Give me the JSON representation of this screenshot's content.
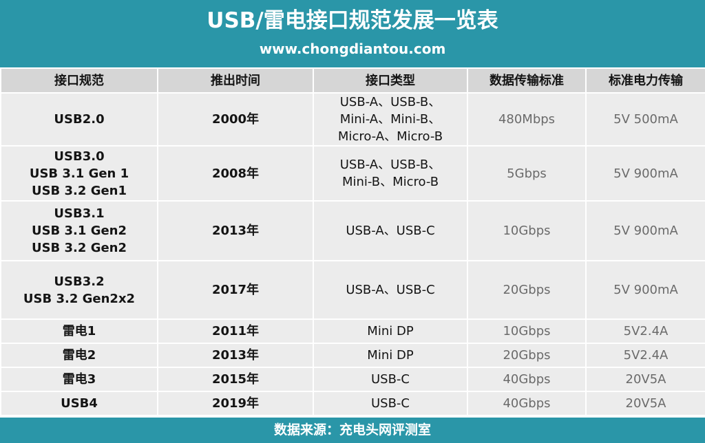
{
  "header": {
    "title": "USB/雷电接口规范发展一览表",
    "site": "www.chongdiantou.com"
  },
  "table": {
    "columns": [
      "接口规范",
      "推出时间",
      "接口类型",
      "数据传输标准",
      "标准电力传输"
    ],
    "rows": [
      {
        "spec": [
          "USB2.0"
        ],
        "year": "2000年",
        "types": [
          "USB-A、USB-B、",
          "Mini-A、Mini-B、",
          "Micro-A、Micro-B"
        ],
        "data_rate": "480Mbps",
        "power": "5V 500mA"
      },
      {
        "spec": [
          "USB3.0",
          "USB 3.1 Gen 1",
          "USB 3.2 Gen1"
        ],
        "year": "2008年",
        "types": [
          "USB-A、USB-B、",
          "Mini-B、Micro-B"
        ],
        "data_rate": "5Gbps",
        "power": "5V 900mA"
      },
      {
        "spec": [
          "USB3.1",
          "USB 3.1 Gen2",
          "USB 3.2 Gen2"
        ],
        "year": "2013年",
        "types": [
          "USB-A、USB-C"
        ],
        "data_rate": "10Gbps",
        "power": "5V 900mA"
      },
      {
        "spec": [
          "USB3.2",
          "USB 3.2 Gen2x2"
        ],
        "year": "2017年",
        "types": [
          "USB-A、USB-C"
        ],
        "data_rate": "20Gbps",
        "power": "5V 900mA"
      },
      {
        "spec": [
          "雷电1"
        ],
        "year": "2011年",
        "types": [
          "Mini DP"
        ],
        "data_rate": "10Gbps",
        "power": "5V2.4A"
      },
      {
        "spec": [
          "雷电2"
        ],
        "year": "2013年",
        "types": [
          "Mini DP"
        ],
        "data_rate": "20Gbps",
        "power": "5V2.4A"
      },
      {
        "spec": [
          "雷电3"
        ],
        "year": "2015年",
        "types": [
          "USB-C"
        ],
        "data_rate": "40Gbps",
        "power": "20V5A"
      },
      {
        "spec": [
          "USB4"
        ],
        "year": "2019年",
        "types": [
          "USB-C"
        ],
        "data_rate": "40Gbps",
        "power": "20V5A"
      }
    ]
  },
  "footer": {
    "source": "数据来源：充电头网评测室"
  },
  "colors": {
    "brand": "#2a96a8",
    "header_cell": "#d6d6d6",
    "body_cell": "#ececec"
  }
}
